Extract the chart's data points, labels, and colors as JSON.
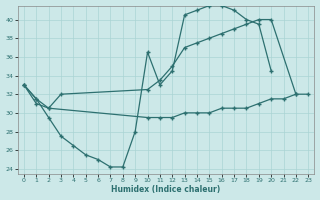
{
  "xlabel": "Humidex (Indice chaleur)",
  "bg_color": "#cce8e8",
  "line_color": "#2d7070",
  "grid_color": "#aad4d4",
  "xlim": [
    -0.5,
    23.5
  ],
  "ylim": [
    23.5,
    41.5
  ],
  "yticks": [
    24,
    26,
    28,
    30,
    32,
    34,
    36,
    38,
    40
  ],
  "xticks": [
    0,
    1,
    2,
    3,
    4,
    5,
    6,
    7,
    8,
    9,
    10,
    11,
    12,
    13,
    14,
    15,
    16,
    17,
    18,
    19,
    20,
    21,
    22,
    23
  ],
  "line1_x": [
    0,
    1,
    2,
    3,
    4,
    5,
    6,
    7,
    8,
    9,
    10,
    11,
    12,
    13,
    14,
    15,
    16,
    17,
    18,
    19,
    20
  ],
  "line1_y": [
    33,
    31.5,
    29.5,
    27.5,
    26.5,
    25.5,
    25.0,
    24.2,
    24.2,
    28.0,
    36.5,
    33.0,
    34.5,
    40.5,
    41.0,
    41.5,
    41.5,
    41.0,
    40.0,
    39.5,
    34.5
  ],
  "line2_x": [
    0,
    1,
    2,
    3,
    10,
    11,
    12,
    13,
    14,
    15,
    16,
    17,
    18,
    19,
    20,
    22
  ],
  "line2_y": [
    33,
    31.5,
    30.5,
    32.0,
    32.5,
    33.5,
    35.0,
    37.0,
    37.5,
    38.0,
    38.5,
    39.0,
    39.5,
    40.0,
    40.0,
    32.0
  ],
  "line3_x": [
    0,
    1,
    2,
    10,
    11,
    12,
    13,
    14,
    15,
    16,
    17,
    18,
    19,
    20,
    21,
    22,
    23
  ],
  "line3_y": [
    33,
    31.0,
    30.5,
    29.5,
    29.5,
    29.5,
    30.0,
    30.0,
    30.0,
    30.5,
    30.5,
    30.5,
    31.0,
    31.5,
    31.5,
    32.0,
    32.0
  ]
}
